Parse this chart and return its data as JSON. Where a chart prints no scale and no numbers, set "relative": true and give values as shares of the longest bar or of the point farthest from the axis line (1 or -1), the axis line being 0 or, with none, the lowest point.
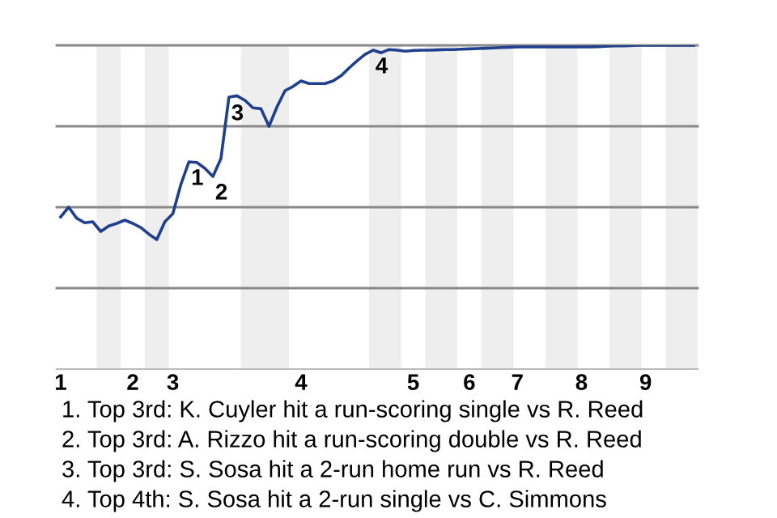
{
  "chart_data": {
    "type": "line",
    "relative": true,
    "categories": [
      "1",
      null,
      null,
      null,
      null,
      null,
      null,
      null,
      null,
      "2",
      null,
      null,
      null,
      null,
      "3",
      null,
      null,
      null,
      null,
      null,
      null,
      null,
      null,
      null,
      null,
      null,
      null,
      null,
      null,
      null,
      "4",
      null,
      null,
      null,
      null,
      null,
      null,
      null,
      null,
      null,
      null,
      null,
      null,
      null,
      "5",
      null,
      null,
      null,
      null,
      null,
      null,
      "6",
      null,
      null,
      null,
      null,
      null,
      "7",
      null,
      null,
      null,
      null,
      null,
      null,
      null,
      "8",
      null,
      null,
      null,
      null,
      null,
      null,
      null,
      "9",
      null,
      null,
      null,
      null,
      null,
      null
    ],
    "series": [
      {
        "color": "#1f3f8f",
        "values": [
          0.47,
          0.5,
          0.466,
          0.452,
          0.455,
          0.425,
          0.442,
          0.45,
          0.46,
          0.45,
          0.437,
          0.417,
          0.4,
          0.455,
          0.48,
          0.57,
          0.64,
          0.638,
          0.62,
          0.595,
          0.65,
          0.84,
          0.844,
          0.83,
          0.807,
          0.804,
          0.75,
          0.81,
          0.86,
          0.873,
          0.89,
          0.882,
          0.882,
          0.882,
          0.89,
          0.906,
          0.93,
          0.952,
          0.972,
          0.985,
          0.977,
          0.987,
          0.985,
          0.982,
          0.984,
          0.985,
          0.985,
          0.986,
          0.987,
          0.987,
          0.988,
          0.989,
          0.99,
          0.991,
          0.992,
          0.993,
          0.994,
          0.995,
          0.995,
          0.995,
          0.995,
          0.995,
          0.995,
          0.995,
          0.995,
          0.995,
          0.995,
          0.996,
          0.997,
          0.998,
          0.998,
          0.999,
          1.0,
          1.0,
          1.0,
          1.0,
          1.0,
          1.0,
          1.0,
          1.0
        ]
      }
    ],
    "tick_labels": "x",
    "grid": false,
    "legend": false,
    "marker": "none",
    "line_style": "solid",
    "ref_lines": [
      {
        "axis": "y",
        "value": 0.25,
        "color": "#888888"
      },
      {
        "axis": "y",
        "value": 0.5,
        "color": "#888888"
      },
      {
        "axis": "y",
        "value": 0.75,
        "color": "#888888"
      },
      {
        "axis": "y",
        "value": 1.0,
        "color": "#888888"
      }
    ],
    "annotations": [
      {
        "text": "1",
        "y": 0.64
      },
      {
        "text": "2",
        "y": 0.595
      },
      {
        "text": "3",
        "y": 0.84
      },
      {
        "text": "4",
        "y": 0.985
      },
      "1. Top 3rd: K. Cuyler hit a run-scoring single vs R. Reed",
      "2. Top 3rd: A. Rizzo hit a run-scoring double vs R. Reed",
      "3. Top 3rd: S. Sosa hit a 2-run home run vs R. Reed",
      "4. Top 4th: S. Sosa hit a 2-run single vs C. Simmons"
    ]
  }
}
